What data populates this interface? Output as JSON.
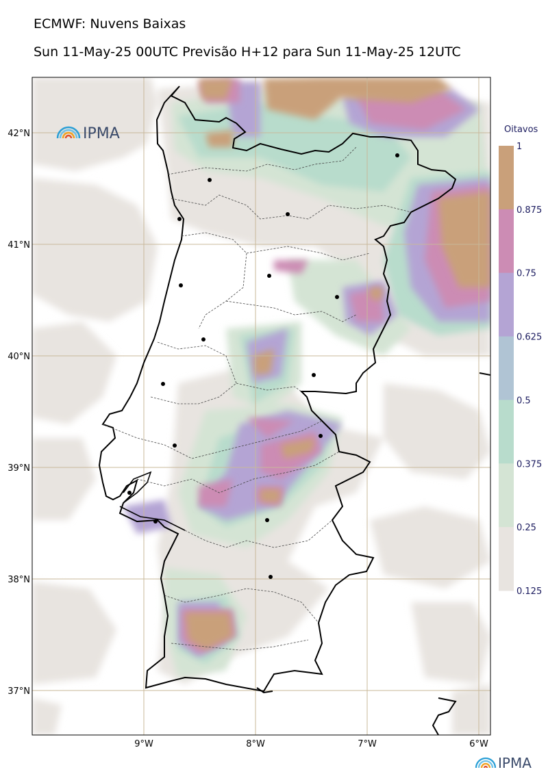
{
  "header": {
    "title": "ECMWF: Nuvens Baixas",
    "subtitle": "Sun 11-May-25 00UTC Previsão H+12 para Sun 11-May-25 12UTC"
  },
  "legend": {
    "title": "Oitavos",
    "ticks": [
      "1",
      "0.875",
      "0.75",
      "0.625",
      "0.5",
      "0.375",
      "0.25",
      "0.125"
    ],
    "colors": [
      "#c9a07a",
      "#cc8cb4",
      "#b4a4d4",
      "#b0c4d4",
      "#b8dccc",
      "#d4e4d4",
      "#e8e4e0"
    ]
  },
  "axes": {
    "lat_labels": [
      "42°N",
      "41°N",
      "40°N",
      "39°N",
      "38°N",
      "37°N"
    ],
    "lon_labels": [
      "9°W",
      "8°W",
      "7°W",
      "6°W"
    ]
  },
  "logos": {
    "top": "IPMA",
    "bottom": "IPMA"
  },
  "colors": {
    "coast": "#000000",
    "grid": "#c8b89a",
    "low_cloud": "#e8e4e0",
    "high_cloud": "#c9a07a"
  }
}
